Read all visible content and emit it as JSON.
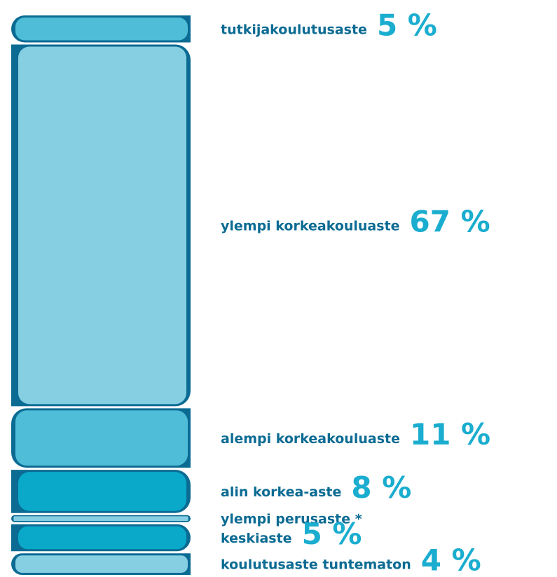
{
  "chart_data": {
    "type": "book-stack",
    "categories": [
      "tutkijakoulutusaste",
      "ylempi korkeakouluaste",
      "alempi korkeakouluaste",
      "alin korkea-aste",
      "ylempi perusaste *",
      "keskiaste",
      "koulutusaste tuntematon"
    ],
    "values": [
      5,
      67,
      11,
      8,
      null,
      5,
      4
    ],
    "value_labels": [
      "5 %",
      "67 %",
      "11 %",
      "8 %",
      null,
      "5 %",
      "4 %"
    ],
    "colors": [
      "#4fbdd8",
      "#86cee2",
      "#4fbdd8",
      "#0aa9c9",
      "#86cee2",
      "#0aa9c9",
      "#86cee2"
    ],
    "spine_color": "#0b6b93",
    "label_color": "#0b6b93",
    "value_label_color": "#1aadcf"
  }
}
